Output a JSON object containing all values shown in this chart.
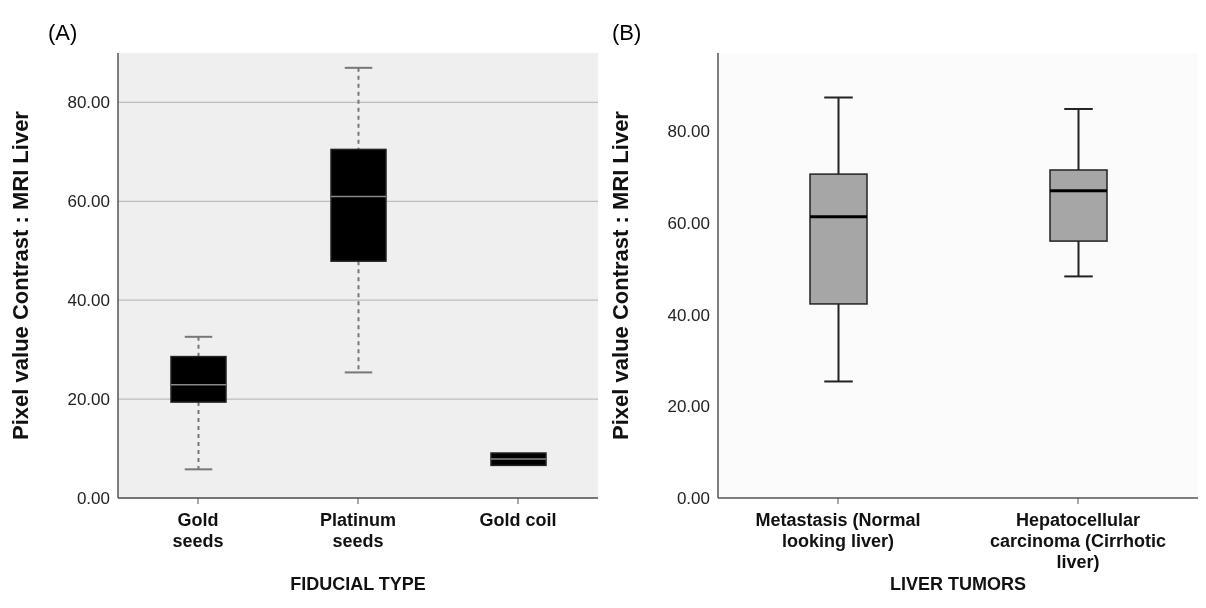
{
  "chart_data": [
    {
      "type": "box",
      "title": "(A)",
      "xlabel": "FIDUCIAL TYPE",
      "ylabel": "Pixel value Contrast : MRI Liver",
      "categories": [
        "Gold seeds",
        "Platinum seeds",
        "Gold coil"
      ],
      "series": [
        {
          "color": "#000000",
          "boxes": [
            {
              "low": 5.8,
              "q1": 19.4,
              "median": 22.9,
              "q3": 28.6,
              "high": 32.6
            },
            {
              "low": 25.4,
              "q1": 47.9,
              "median": 61.0,
              "q3": 70.5,
              "high": 87.0
            },
            {
              "low": 6.6,
              "q1": 6.6,
              "median": 7.9,
              "q3": 9.1,
              "high": 9.1
            }
          ]
        }
      ],
      "ylim": [
        0,
        90
      ],
      "yticks": [
        {
          "value": 0,
          "label": "0.00"
        },
        {
          "value": 20,
          "label": "20.00"
        },
        {
          "value": 40,
          "label": "40.00"
        },
        {
          "value": 60,
          "label": "60.00"
        },
        {
          "value": 80,
          "label": "80.00"
        }
      ],
      "grid": "y",
      "line_style": "dashed"
    },
    {
      "type": "box",
      "title": "(B)",
      "xlabel": "LIVER TUMORS",
      "ylabel": "Pixel value Contrast : MRI Liver",
      "categories": [
        "Metastasis (Normal looking liver)",
        "Hepatocellular carcinoma (Cirrhotic liver)"
      ],
      "series": [
        {
          "color": "#a6a6a6",
          "boxes": [
            {
              "low": 25.4,
              "q1": 42.3,
              "median": 61.3,
              "q3": 70.6,
              "high": 87.3
            },
            {
              "low": 48.3,
              "q1": 56.0,
              "median": 67.0,
              "q3": 71.5,
              "high": 84.8
            }
          ]
        }
      ],
      "ylim": [
        0,
        97
      ],
      "yticks": [
        {
          "value": 0,
          "label": "0.00"
        },
        {
          "value": 20,
          "label": "20.00"
        },
        {
          "value": 40,
          "label": "40.00"
        },
        {
          "value": 60,
          "label": "60.00"
        },
        {
          "value": 80,
          "label": "80.00"
        }
      ],
      "grid": false,
      "line_style": "solid"
    }
  ]
}
